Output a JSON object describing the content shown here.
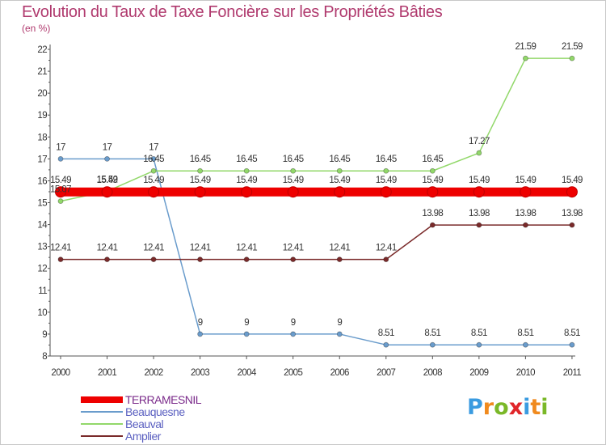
{
  "chart_data": {
    "type": "line",
    "title": "Evolution du Taux de Taxe Foncière sur les Propriétés Bâties",
    "ylabel": "(en %)",
    "xlabel": "",
    "categories": [
      "2000",
      "2001",
      "2002",
      "2003",
      "2004",
      "2005",
      "2006",
      "2007",
      "2008",
      "2009",
      "2010",
      "2011"
    ],
    "ylim": [
      8,
      22
    ],
    "yticks": [
      "8",
      "9",
      "10",
      "11",
      "12",
      "13",
      "14",
      "15",
      "16",
      "17",
      "18",
      "19",
      "20",
      "21",
      "22"
    ],
    "series": [
      {
        "name": "TERRAMESNIL",
        "color": "#ee0000",
        "values": [
          15.49,
          15.49,
          15.49,
          15.49,
          15.49,
          15.49,
          15.49,
          15.49,
          15.49,
          15.49,
          15.49,
          15.49
        ],
        "labels": [
          "15.49",
          "15.49",
          "15.49",
          "15.49",
          "15.49",
          "15.49",
          "15.49",
          "15.49",
          "15.49",
          "15.49",
          "15.49",
          "15.49"
        ]
      },
      {
        "name": "Beauquesne",
        "color": "#6a9ccc",
        "values": [
          17,
          17,
          17,
          9,
          9,
          9,
          9,
          8.51,
          8.51,
          8.51,
          8.51,
          8.51
        ],
        "labels": [
          "17",
          "17",
          "17",
          "9",
          "9",
          "9",
          "9",
          "8.51",
          "8.51",
          "8.51",
          "8.51",
          "8.51"
        ]
      },
      {
        "name": "Beauval",
        "color": "#92d86a",
        "values": [
          15.07,
          15.52,
          16.45,
          16.45,
          16.45,
          16.45,
          16.45,
          16.45,
          16.45,
          17.27,
          21.59,
          21.59
        ],
        "labels": [
          "15.07",
          "15.52",
          "16.45",
          "16.45",
          "16.45",
          "16.45",
          "16.45",
          "16.45",
          "16.45",
          "17.27",
          "21.59",
          "21.59"
        ]
      },
      {
        "name": "Amplier",
        "color": "#7a2a2a",
        "values": [
          12.41,
          12.41,
          12.41,
          12.41,
          12.41,
          12.41,
          12.41,
          12.41,
          13.98,
          13.98,
          13.98,
          13.98
        ],
        "labels": [
          "12.41",
          "12.41",
          "12.41",
          "12.41",
          "12.41",
          "12.41",
          "12.41",
          "12.41",
          "13.98",
          "13.98",
          "13.98",
          "13.98"
        ]
      }
    ],
    "grid": false,
    "legend": "bottom-left"
  },
  "brand": {
    "letters": [
      "P",
      "r",
      "o",
      "x",
      "i",
      "t",
      "i"
    ],
    "colors": [
      "#3a9be0",
      "#f08a1e",
      "#7ab828",
      "#e0262a",
      "#3a9be0",
      "#f08a1e",
      "#7ab828"
    ]
  }
}
